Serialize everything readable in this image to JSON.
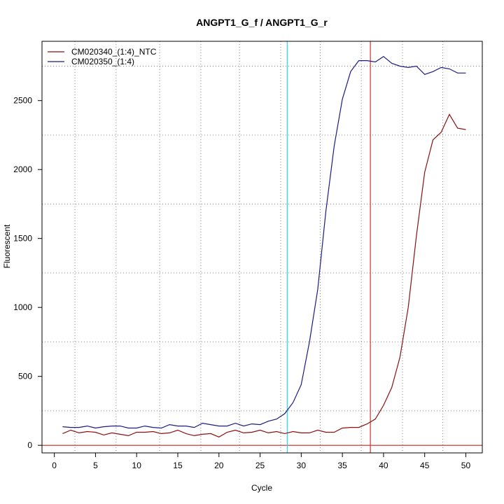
{
  "chart_data": {
    "type": "line",
    "title": "ANGPT1_G_f / ANGPT1_G_r",
    "xlabel": "Cycle",
    "ylabel": "Fluorescent",
    "xlim": [
      -1.5,
      52
    ],
    "ylim": [
      -55,
      2930
    ],
    "xticks": [
      0,
      5,
      10,
      15,
      20,
      25,
      30,
      35,
      40,
      45,
      50
    ],
    "yticks": [
      0,
      500,
      1000,
      1500,
      2000,
      2500
    ],
    "grid": true,
    "grid_x": [
      2.5,
      7.5,
      12.8,
      17.8,
      22.5,
      27.5,
      32.3,
      37.3,
      42.3,
      47.2
    ],
    "grid_y": [
      250,
      750,
      1250,
      1750,
      2250,
      2750
    ],
    "legend_position": "top-left",
    "threshold": {
      "value": 0,
      "color": "#cc2222"
    },
    "cycle_markers": [
      {
        "x": 28.3,
        "color": "#22ddee"
      },
      {
        "x": 38.4,
        "color": "#cc3333"
      }
    ],
    "series": [
      {
        "name": "CM020340_(1:4)_NTC",
        "color": "#8b1010",
        "x": [
          1,
          2,
          3,
          4,
          5,
          6,
          7,
          8,
          9,
          10,
          11,
          12,
          13,
          14,
          15,
          16,
          17,
          18,
          19,
          20,
          21,
          22,
          23,
          24,
          25,
          26,
          27,
          28,
          29,
          30,
          31,
          32,
          33,
          34,
          35,
          36,
          37,
          38,
          39,
          40,
          41,
          42,
          43,
          44,
          45,
          46,
          47,
          48,
          49,
          50
        ],
        "values": [
          85,
          110,
          90,
          100,
          95,
          75,
          90,
          80,
          70,
          95,
          95,
          100,
          85,
          90,
          110,
          85,
          70,
          80,
          85,
          60,
          95,
          110,
          90,
          95,
          110,
          90,
          100,
          85,
          100,
          90,
          90,
          110,
          95,
          95,
          125,
          130,
          130,
          155,
          190,
          290,
          420,
          640,
          1000,
          1520,
          1980,
          2215,
          2270,
          2400,
          2300,
          2290
        ]
      },
      {
        "name": "CM020350_(1:4)",
        "color": "#1c1c80",
        "x": [
          1,
          2,
          3,
          4,
          5,
          6,
          7,
          8,
          9,
          10,
          11,
          12,
          13,
          14,
          15,
          16,
          17,
          18,
          19,
          20,
          21,
          22,
          23,
          24,
          25,
          26,
          27,
          28,
          29,
          30,
          31,
          32,
          33,
          34,
          35,
          36,
          37,
          38,
          39,
          40,
          41,
          42,
          43,
          44,
          45,
          46,
          47,
          48,
          49,
          50
        ],
        "values": [
          135,
          130,
          130,
          140,
          125,
          135,
          140,
          140,
          125,
          125,
          140,
          130,
          125,
          150,
          140,
          140,
          130,
          160,
          150,
          140,
          140,
          160,
          140,
          155,
          150,
          175,
          190,
          230,
          310,
          440,
          750,
          1130,
          1700,
          2170,
          2510,
          2710,
          2790,
          2790,
          2780,
          2820,
          2770,
          2750,
          2740,
          2750,
          2690,
          2710,
          2740,
          2730,
          2700,
          2700
        ]
      }
    ]
  }
}
